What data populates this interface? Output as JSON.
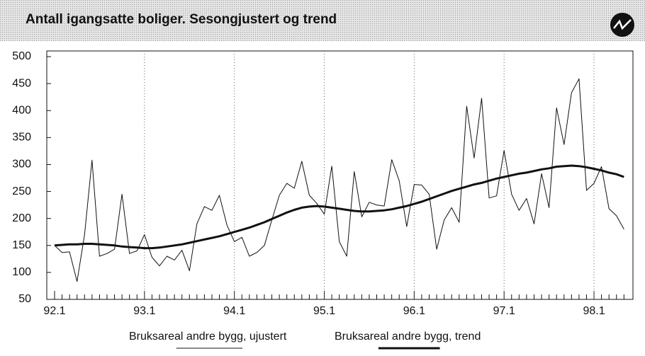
{
  "chart_data": {
    "type": "line",
    "title": "Antall igangsatte boliger. Sesongjustert og trend",
    "categories": [
      "92.1",
      null,
      null,
      null,
      null,
      null,
      null,
      null,
      null,
      null,
      null,
      null,
      "93.1",
      null,
      null,
      null,
      null,
      null,
      null,
      null,
      null,
      null,
      null,
      null,
      "94.1",
      null,
      null,
      null,
      null,
      null,
      null,
      null,
      null,
      null,
      null,
      null,
      "95.1",
      null,
      null,
      null,
      null,
      null,
      null,
      null,
      null,
      null,
      null,
      null,
      "96.1",
      null,
      null,
      null,
      null,
      null,
      null,
      null,
      null,
      null,
      null,
      null,
      "97.1",
      null,
      null,
      null,
      null,
      null,
      null,
      null,
      null,
      null,
      null,
      null,
      "98.1",
      null,
      null,
      null,
      null
    ],
    "series": [
      {
        "name": "Bruksareal andre bygg, ujustert",
        "color": "#111111",
        "width": 1,
        "values": [
          150,
          137,
          138,
          83,
          170,
          308,
          130,
          135,
          143,
          245,
          135,
          140,
          170,
          128,
          112,
          130,
          123,
          141,
          103,
          190,
          222,
          215,
          243,
          188,
          157,
          165,
          130,
          137,
          150,
          197,
          243,
          265,
          256,
          306,
          243,
          228,
          208,
          297,
          157,
          130,
          287,
          203,
          230,
          225,
          223,
          309,
          270,
          185,
          263,
          262,
          245,
          143,
          197,
          220,
          193,
          408,
          312,
          423,
          238,
          242,
          326,
          245,
          215,
          237,
          190,
          283,
          220,
          405,
          337,
          433,
          459,
          252,
          265,
          296,
          218,
          205,
          180
        ]
      },
      {
        "name": "Bruksareal andre bygg, trend",
        "color": "#111111",
        "width": 3,
        "values": [
          150,
          151,
          152,
          152,
          153,
          153,
          152,
          151,
          150,
          148,
          147,
          146,
          145,
          145,
          146,
          148,
          150,
          152,
          155,
          158,
          161,
          164,
          167,
          171,
          175,
          179,
          183,
          188,
          193,
          199,
          205,
          211,
          216,
          220,
          222,
          223,
          222,
          220,
          218,
          216,
          214,
          213,
          213,
          214,
          215,
          217,
          220,
          223,
          227,
          231,
          236,
          241,
          246,
          251,
          255,
          259,
          263,
          266,
          270,
          274,
          277,
          280,
          283,
          285,
          288,
          291,
          293,
          296,
          297,
          298,
          297,
          295,
          292,
          289,
          285,
          282,
          277
        ]
      }
    ],
    "ylim": [
      50,
      500
    ],
    "yticks": [
      50,
      100,
      150,
      200,
      250,
      300,
      350,
      400,
      450,
      500
    ],
    "grid": true
  }
}
